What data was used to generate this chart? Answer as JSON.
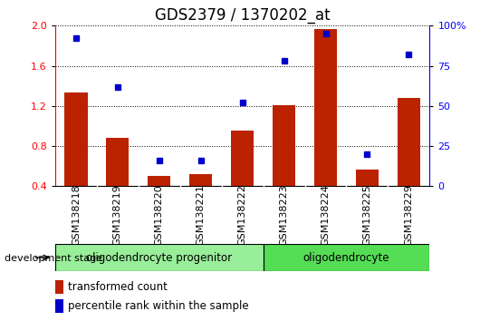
{
  "title": "GDS2379 / 1370202_at",
  "samples": [
    "GSM138218",
    "GSM138219",
    "GSM138220",
    "GSM138221",
    "GSM138222",
    "GSM138223",
    "GSM138224",
    "GSM138225",
    "GSM138229"
  ],
  "transformed_count": [
    1.33,
    0.88,
    0.5,
    0.52,
    0.95,
    1.21,
    1.97,
    0.57,
    1.28
  ],
  "percentile_rank": [
    92,
    62,
    16,
    16,
    52,
    78,
    95,
    20,
    82
  ],
  "bar_color": "#bb2200",
  "dot_color": "#0000cc",
  "ylim_left": [
    0.4,
    2.0
  ],
  "ylim_right": [
    0,
    100
  ],
  "yticks_left": [
    0.4,
    0.8,
    1.2,
    1.6,
    2.0
  ],
  "yticks_right": [
    0,
    25,
    50,
    75,
    100
  ],
  "ytick_labels_right": [
    "0",
    "25",
    "50",
    "75",
    "100%"
  ],
  "groups": [
    {
      "label": "oligodendrocyte progenitor",
      "start": 0,
      "end": 5,
      "color": "#99ee99"
    },
    {
      "label": "oligodendrocyte",
      "start": 5,
      "end": 9,
      "color": "#55dd55"
    }
  ],
  "dev_stage_label": "development stage",
  "legend_bar_label": "transformed count",
  "legend_dot_label": "percentile rank within the sample",
  "plot_bg": "#ffffff",
  "sample_box_bg": "#cccccc",
  "title_fontsize": 12,
  "tick_fontsize": 8,
  "label_fontsize": 8.5,
  "group_fontsize": 8.5
}
